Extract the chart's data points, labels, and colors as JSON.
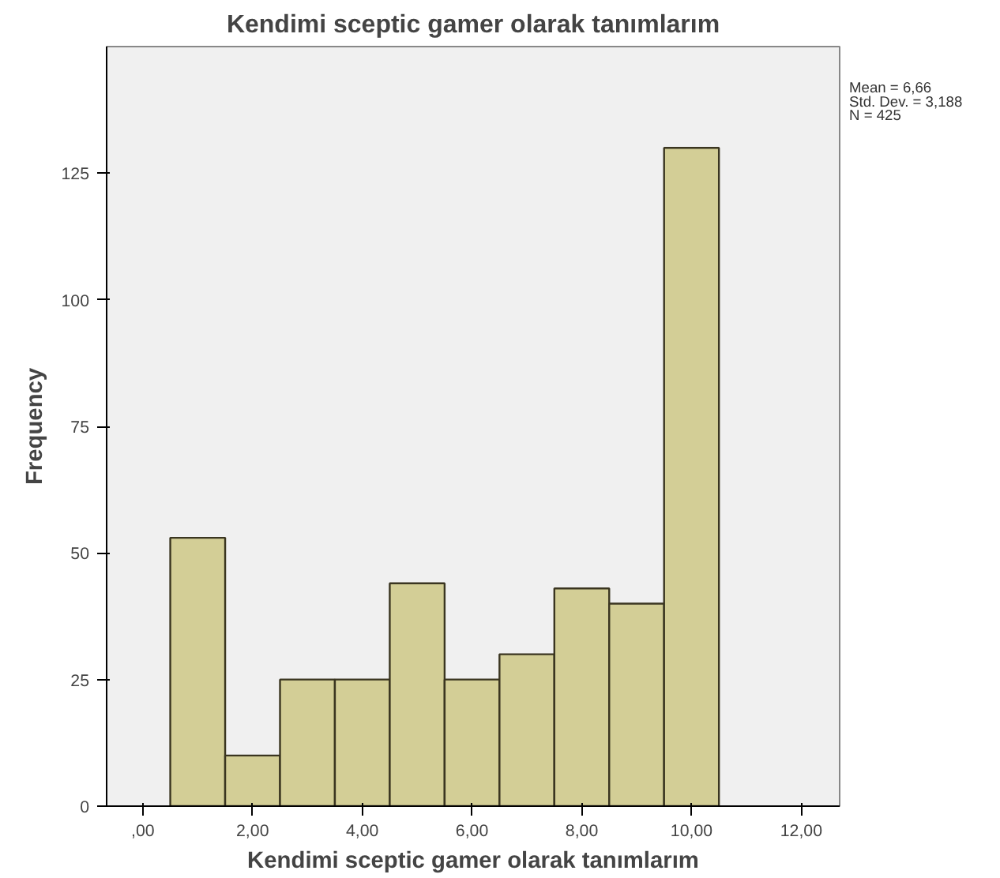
{
  "chart_data": {
    "type": "histogram",
    "title": "Kendimi sceptic gamer olarak tanımlarım",
    "xlabel": "Kendimi sceptic gamer olarak tanımlarım",
    "ylabel": "Frequency",
    "bins": [
      0.5,
      1.5,
      2.5,
      3.5,
      4.5,
      5.5,
      6.5,
      7.5,
      8.5,
      9.5,
      10.5
    ],
    "values": [
      53,
      10,
      25,
      25,
      44,
      25,
      30,
      43,
      40,
      130
    ],
    "color": "#d3ce96",
    "xlim": [
      -0.66,
      12.7
    ],
    "ylim": [
      0,
      150
    ],
    "xticks": [
      {
        "value": 0,
        "label": ",00"
      },
      {
        "value": 2,
        "label": "2,00"
      },
      {
        "value": 4,
        "label": "4,00"
      },
      {
        "value": 6,
        "label": "6,00"
      },
      {
        "value": 8,
        "label": "8,00"
      },
      {
        "value": 10,
        "label": "10,00"
      },
      {
        "value": 12,
        "label": "12,00"
      }
    ],
    "yticks": [
      0,
      25,
      50,
      75,
      100,
      125
    ],
    "grid": false,
    "annotations": [
      "Mean = 6,66",
      "Std. Dev. = 3,188",
      "N = 425"
    ]
  }
}
